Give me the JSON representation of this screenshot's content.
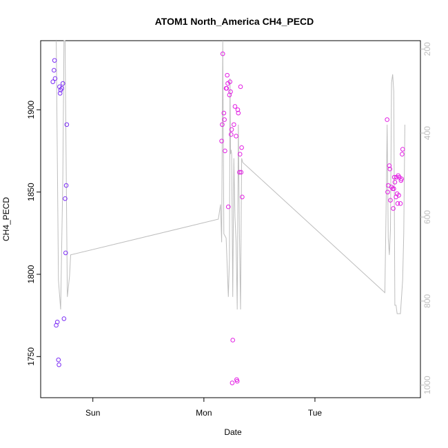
{
  "chart_data": {
    "type": "scatter",
    "title": "ATOM1 North_America CH4_PECD",
    "xlabel": "Date",
    "ylabel": "CH4_PECD",
    "x_ticks": [
      {
        "label": "Sun",
        "t": 0.93
      },
      {
        "label": "Mon",
        "t": 1.93
      },
      {
        "label": "Tue",
        "t": 2.93
      }
    ],
    "xlim": [
      0.46,
      3.88
    ],
    "ylim": [
      1725,
      1942
    ],
    "y_ticks": [
      1750,
      1800,
      1850,
      1900
    ],
    "y2_lim": [
      1030,
      180
    ],
    "y2_ticks": [
      200,
      400,
      600,
      800,
      1000
    ],
    "grid": false,
    "legend": "none",
    "colors": {
      "axis": "#000000",
      "right_axis": "#bdbdbd",
      "line": "#bdbdbd",
      "series_early": "#7b2cf5",
      "series_late": "#e21ee3"
    },
    "series": [
      {
        "kind": "points",
        "color_key": "series_early",
        "points": [
          [
            0.57,
            1917
          ],
          [
            0.58,
            1924
          ],
          [
            0.585,
            1930
          ],
          [
            0.59,
            1919
          ],
          [
            0.6,
            1769
          ],
          [
            0.61,
            1771
          ],
          [
            0.62,
            1748
          ],
          [
            0.625,
            1745
          ],
          [
            0.63,
            1914
          ],
          [
            0.635,
            1910
          ],
          [
            0.64,
            1912
          ],
          [
            0.65,
            1913
          ],
          [
            0.66,
            1916
          ],
          [
            0.67,
            1773
          ],
          [
            0.68,
            1846
          ],
          [
            0.69,
            1854
          ],
          [
            0.685,
            1813
          ],
          [
            0.695,
            1891
          ]
        ]
      },
      {
        "kind": "points",
        "color_key": "series_late",
        "points": [
          [
            2.1,
            1934
          ],
          [
            2.095,
            1891
          ],
          [
            2.09,
            1881
          ],
          [
            2.11,
            1898
          ],
          [
            2.115,
            1894
          ],
          [
            2.12,
            1875
          ],
          [
            2.13,
            1913
          ],
          [
            2.135,
            1913
          ],
          [
            2.14,
            1921
          ],
          [
            2.145,
            1916
          ],
          [
            2.15,
            1841
          ],
          [
            2.16,
            1909
          ],
          [
            2.165,
            1917
          ],
          [
            2.17,
            1911
          ],
          [
            2.175,
            1885
          ],
          [
            2.18,
            1888
          ],
          [
            2.185,
            1734
          ],
          [
            2.19,
            1760
          ],
          [
            2.2,
            1891
          ],
          [
            2.21,
            1902
          ],
          [
            2.22,
            1884
          ],
          [
            2.225,
            1736
          ],
          [
            2.23,
            1735
          ],
          [
            2.235,
            1900
          ],
          [
            2.24,
            1898
          ],
          [
            2.25,
            1862
          ],
          [
            2.255,
            1873
          ],
          [
            2.26,
            1914
          ],
          [
            2.265,
            1862
          ],
          [
            2.27,
            1877
          ],
          [
            2.275,
            1847
          ],
          [
            3.58,
            1894
          ],
          [
            3.59,
            1854
          ],
          [
            3.585,
            1850
          ],
          [
            3.6,
            1866
          ],
          [
            3.605,
            1864
          ],
          [
            3.61,
            1845
          ],
          [
            3.62,
            1853
          ],
          [
            3.63,
            1852
          ],
          [
            3.635,
            1840
          ],
          [
            3.64,
            1852
          ],
          [
            3.645,
            1859
          ],
          [
            3.65,
            1856
          ],
          [
            3.66,
            1847
          ],
          [
            3.665,
            1859
          ],
          [
            3.67,
            1849
          ],
          [
            3.675,
            1843
          ],
          [
            3.68,
            1860
          ],
          [
            3.685,
            1848
          ],
          [
            3.69,
            1859
          ],
          [
            3.7,
            1843
          ],
          [
            3.705,
            1857
          ],
          [
            3.71,
            1858
          ],
          [
            3.715,
            1873
          ],
          [
            3.72,
            1876
          ]
        ]
      },
      {
        "kind": "line",
        "axis": "right",
        "color_key": "line",
        "points": [
          [
            0.6,
            180
          ],
          [
            0.62,
            750
          ],
          [
            0.64,
            820
          ],
          [
            0.66,
            500
          ],
          [
            0.67,
            180
          ],
          [
            0.68,
            180
          ],
          [
            0.7,
            790
          ],
          [
            0.72,
            740
          ],
          [
            0.73,
            690
          ],
          [
            2.06,
            605
          ],
          [
            2.08,
            570
          ],
          [
            2.09,
            660
          ],
          [
            2.1,
            180
          ],
          [
            2.11,
            640
          ],
          [
            2.13,
            650
          ],
          [
            2.15,
            790
          ],
          [
            2.16,
            700
          ],
          [
            2.165,
            270
          ],
          [
            2.17,
            450
          ],
          [
            2.175,
            440
          ],
          [
            2.18,
            450
          ],
          [
            2.19,
            790
          ],
          [
            2.2,
            460
          ],
          [
            2.21,
            600
          ],
          [
            2.22,
            660
          ],
          [
            2.23,
            820
          ],
          [
            2.24,
            380
          ],
          [
            2.25,
            640
          ],
          [
            2.26,
            820
          ],
          [
            2.27,
            460
          ],
          [
            2.28,
            470
          ],
          [
            3.56,
            780
          ],
          [
            3.57,
            590
          ],
          [
            3.58,
            380
          ],
          [
            3.59,
            650
          ],
          [
            3.6,
            690
          ],
          [
            3.61,
            630
          ],
          [
            3.62,
            280
          ],
          [
            3.63,
            260
          ],
          [
            3.64,
            300
          ],
          [
            3.65,
            810
          ],
          [
            3.66,
            810
          ],
          [
            3.67,
            830
          ],
          [
            3.68,
            830
          ],
          [
            3.7,
            830
          ],
          [
            3.72,
            750
          ],
          [
            3.73,
            640
          ],
          [
            3.74,
            380
          ]
        ]
      }
    ]
  }
}
